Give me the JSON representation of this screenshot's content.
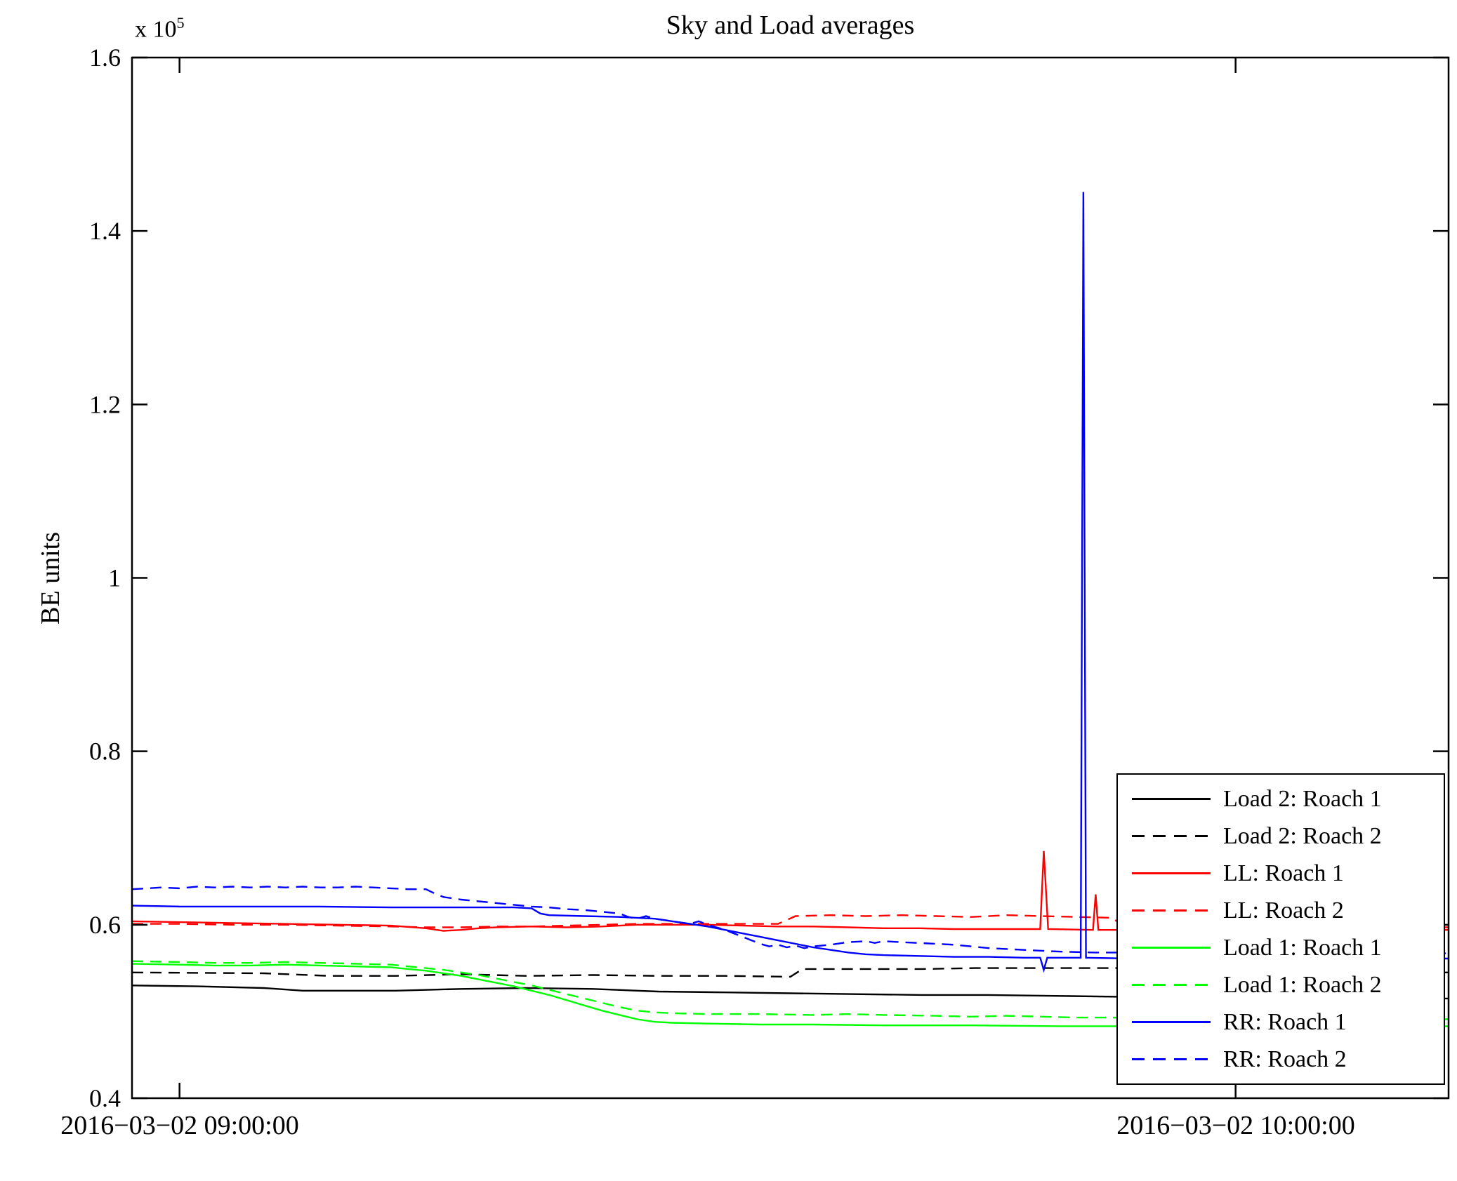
{
  "chart_data": {
    "type": "line",
    "title": "Sky and Load averages",
    "xlabel": "",
    "ylabel": "BE units",
    "y_offset_base": "x 10",
    "y_offset_exp": "5",
    "y_multiplier": 100000,
    "ylim": [
      0.4,
      1.6
    ],
    "y_ticks": [
      0.4,
      0.6,
      0.8,
      1,
      1.2,
      1.4,
      1.6
    ],
    "y_tick_labels": [
      "0.4",
      "0.6",
      "0.8",
      "1",
      "1.2",
      "1.4",
      "1.6"
    ],
    "x_unit": "minutes after 09:00:00",
    "xlim": [
      -2.7,
      72.1
    ],
    "x_ticks": [
      0,
      60
    ],
    "x_tick_labels": [
      "2016−03−02 09:00:00",
      "2016−03−02 10:00:00"
    ],
    "grid": false,
    "legend_position": "lower right",
    "colors": {
      "axis": "#000000",
      "background": "#ffffff"
    },
    "series": [
      {
        "name": "Load 2: Roach 1",
        "color": "#000000",
        "style": "solid",
        "points": [
          [
            -2.7,
            0.53
          ],
          [
            1,
            0.529
          ],
          [
            4.8,
            0.527
          ],
          [
            7,
            0.524
          ],
          [
            12.3,
            0.524
          ],
          [
            16,
            0.526
          ],
          [
            19.7,
            0.527
          ],
          [
            23.5,
            0.526
          ],
          [
            27.2,
            0.523
          ],
          [
            31,
            0.522
          ],
          [
            34.7,
            0.521
          ],
          [
            38.4,
            0.52
          ],
          [
            42.2,
            0.519
          ],
          [
            45.9,
            0.519
          ],
          [
            49.7,
            0.518
          ],
          [
            53.4,
            0.517
          ],
          [
            57.1,
            0.516
          ],
          [
            64.6,
            0.515
          ],
          [
            72.1,
            0.515
          ]
        ]
      },
      {
        "name": "Load 2: Roach 2",
        "color": "#000000",
        "style": "dashed",
        "points": [
          [
            -2.7,
            0.545
          ],
          [
            4.8,
            0.544
          ],
          [
            8.5,
            0.541
          ],
          [
            12.3,
            0.541
          ],
          [
            16,
            0.543
          ],
          [
            19.7,
            0.541
          ],
          [
            23.5,
            0.542
          ],
          [
            27.2,
            0.541
          ],
          [
            31,
            0.541
          ],
          [
            34.7,
            0.54
          ],
          [
            35.4,
            0.549
          ],
          [
            42.2,
            0.549
          ],
          [
            45.2,
            0.55
          ],
          [
            49.7,
            0.55
          ],
          [
            53.4,
            0.55
          ],
          [
            53.8,
            0.545
          ],
          [
            57.1,
            0.546
          ],
          [
            60.9,
            0.545
          ],
          [
            64.6,
            0.545
          ],
          [
            72.1,
            0.545
          ]
        ]
      },
      {
        "name": "LL: Roach 1",
        "color": "#ff0000",
        "style": "solid",
        "points": [
          [
            -2.7,
            0.604
          ],
          [
            0,
            0.603
          ],
          [
            3,
            0.602
          ],
          [
            6,
            0.601
          ],
          [
            9,
            0.6
          ],
          [
            12,
            0.599
          ],
          [
            14,
            0.596
          ],
          [
            15,
            0.593
          ],
          [
            16,
            0.594
          ],
          [
            17,
            0.596
          ],
          [
            18,
            0.597
          ],
          [
            20,
            0.598
          ],
          [
            22,
            0.597
          ],
          [
            24,
            0.598
          ],
          [
            26,
            0.6
          ],
          [
            28,
            0.6
          ],
          [
            30,
            0.6
          ],
          [
            32,
            0.599
          ],
          [
            34,
            0.598
          ],
          [
            36,
            0.598
          ],
          [
            38,
            0.597
          ],
          [
            40,
            0.596
          ],
          [
            42,
            0.596
          ],
          [
            44,
            0.595
          ],
          [
            46,
            0.595
          ],
          [
            48.9,
            0.595
          ],
          [
            49.1,
            0.685
          ],
          [
            49.35,
            0.595
          ],
          [
            51.9,
            0.594
          ],
          [
            52.05,
            0.635
          ],
          [
            52.2,
            0.594
          ],
          [
            54,
            0.594
          ],
          [
            58,
            0.594
          ],
          [
            62,
            0.594
          ],
          [
            66,
            0.594
          ],
          [
            72.1,
            0.594
          ]
        ]
      },
      {
        "name": "LL: Roach 2",
        "color": "#ff0000",
        "style": "dashed",
        "points": [
          [
            -2.7,
            0.601
          ],
          [
            0,
            0.601
          ],
          [
            3,
            0.6
          ],
          [
            6,
            0.6
          ],
          [
            9,
            0.599
          ],
          [
            12,
            0.598
          ],
          [
            14,
            0.597
          ],
          [
            16,
            0.597
          ],
          [
            18,
            0.598
          ],
          [
            20,
            0.598
          ],
          [
            22,
            0.599
          ],
          [
            24,
            0.6
          ],
          [
            26,
            0.601
          ],
          [
            28,
            0.601
          ],
          [
            30,
            0.601
          ],
          [
            32,
            0.601
          ],
          [
            34,
            0.601
          ],
          [
            35,
            0.61
          ],
          [
            37,
            0.611
          ],
          [
            39,
            0.61
          ],
          [
            41,
            0.611
          ],
          [
            43,
            0.61
          ],
          [
            45,
            0.609
          ],
          [
            47,
            0.611
          ],
          [
            49,
            0.61
          ],
          [
            51,
            0.609
          ],
          [
            53,
            0.608
          ],
          [
            53.5,
            0.6
          ],
          [
            55,
            0.599
          ],
          [
            57,
            0.599
          ],
          [
            59,
            0.598
          ],
          [
            61,
            0.6
          ],
          [
            63,
            0.597
          ],
          [
            66,
            0.597
          ],
          [
            72.1,
            0.597
          ]
        ]
      },
      {
        "name": "Load 1: Roach 1",
        "color": "#00ff00",
        "style": "solid",
        "points": [
          [
            -2.7,
            0.555
          ],
          [
            0,
            0.554
          ],
          [
            2,
            0.553
          ],
          [
            4,
            0.553
          ],
          [
            6,
            0.554
          ],
          [
            8,
            0.553
          ],
          [
            10,
            0.552
          ],
          [
            12,
            0.551
          ],
          [
            13,
            0.549
          ],
          [
            14,
            0.547
          ],
          [
            15,
            0.544
          ],
          [
            16,
            0.541
          ],
          [
            17,
            0.537
          ],
          [
            18,
            0.533
          ],
          [
            19,
            0.529
          ],
          [
            20,
            0.524
          ],
          [
            21,
            0.519
          ],
          [
            22,
            0.513
          ],
          [
            23,
            0.507
          ],
          [
            24,
            0.501
          ],
          [
            25,
            0.496
          ],
          [
            26,
            0.491
          ],
          [
            27,
            0.488
          ],
          [
            28,
            0.487
          ],
          [
            30,
            0.486
          ],
          [
            33,
            0.485
          ],
          [
            36,
            0.485
          ],
          [
            40,
            0.484
          ],
          [
            45,
            0.484
          ],
          [
            50,
            0.483
          ],
          [
            55,
            0.483
          ],
          [
            60,
            0.483
          ],
          [
            72.1,
            0.483
          ]
        ]
      },
      {
        "name": "Load 1: Roach 2",
        "color": "#00ff00",
        "style": "dashed",
        "points": [
          [
            -2.7,
            0.558
          ],
          [
            0,
            0.557
          ],
          [
            2,
            0.556
          ],
          [
            4,
            0.556
          ],
          [
            6,
            0.557
          ],
          [
            8,
            0.556
          ],
          [
            10,
            0.555
          ],
          [
            12,
            0.554
          ],
          [
            13,
            0.552
          ],
          [
            14,
            0.55
          ],
          [
            15,
            0.548
          ],
          [
            16,
            0.545
          ],
          [
            17,
            0.542
          ],
          [
            18,
            0.538
          ],
          [
            19,
            0.534
          ],
          [
            20,
            0.53
          ],
          [
            21,
            0.525
          ],
          [
            22,
            0.52
          ],
          [
            23,
            0.515
          ],
          [
            24,
            0.51
          ],
          [
            25,
            0.505
          ],
          [
            26,
            0.501
          ],
          [
            27,
            0.499
          ],
          [
            28,
            0.498
          ],
          [
            30,
            0.497
          ],
          [
            33,
            0.497
          ],
          [
            36,
            0.496
          ],
          [
            38,
            0.497
          ],
          [
            40,
            0.496
          ],
          [
            43,
            0.495
          ],
          [
            45,
            0.494
          ],
          [
            47,
            0.495
          ],
          [
            49,
            0.494
          ],
          [
            51,
            0.493
          ],
          [
            53,
            0.493
          ],
          [
            56,
            0.492
          ],
          [
            60,
            0.492
          ],
          [
            65,
            0.491
          ],
          [
            72.1,
            0.491
          ]
        ]
      },
      {
        "name": "RR: Roach 1",
        "color": "#0000ff",
        "style": "solid",
        "points": [
          [
            -2.7,
            0.622
          ],
          [
            0,
            0.621
          ],
          [
            4,
            0.621
          ],
          [
            8,
            0.621
          ],
          [
            12,
            0.62
          ],
          [
            16,
            0.62
          ],
          [
            19,
            0.62
          ],
          [
            20,
            0.619
          ],
          [
            20.5,
            0.613
          ],
          [
            21,
            0.611
          ],
          [
            23,
            0.61
          ],
          [
            25,
            0.609
          ],
          [
            27,
            0.607
          ],
          [
            28,
            0.604
          ],
          [
            29,
            0.601
          ],
          [
            30,
            0.598
          ],
          [
            31,
            0.594
          ],
          [
            32,
            0.59
          ],
          [
            33,
            0.586
          ],
          [
            34,
            0.582
          ],
          [
            35,
            0.578
          ],
          [
            36,
            0.574
          ],
          [
            37,
            0.571
          ],
          [
            38,
            0.568
          ],
          [
            39,
            0.566
          ],
          [
            40,
            0.565
          ],
          [
            42,
            0.564
          ],
          [
            44,
            0.563
          ],
          [
            46,
            0.563
          ],
          [
            48,
            0.562
          ],
          [
            48.9,
            0.562
          ],
          [
            49.1,
            0.548
          ],
          [
            49.3,
            0.562
          ],
          [
            51.2,
            0.562
          ],
          [
            51.35,
            1.445
          ],
          [
            51.5,
            0.562
          ],
          [
            54,
            0.561
          ],
          [
            58,
            0.561
          ],
          [
            62,
            0.561
          ],
          [
            66,
            0.561
          ],
          [
            72.1,
            0.561
          ]
        ]
      },
      {
        "name": "RR: Roach 2",
        "color": "#0000ff",
        "style": "dashed",
        "points": [
          [
            -2.7,
            0.641
          ],
          [
            -1,
            0.643
          ],
          [
            0,
            0.642
          ],
          [
            1,
            0.644
          ],
          [
            2,
            0.643
          ],
          [
            3,
            0.644
          ],
          [
            4,
            0.643
          ],
          [
            5,
            0.644
          ],
          [
            6,
            0.643
          ],
          [
            7,
            0.644
          ],
          [
            8,
            0.643
          ],
          [
            9,
            0.643
          ],
          [
            10,
            0.644
          ],
          [
            11,
            0.643
          ],
          [
            12,
            0.642
          ],
          [
            13,
            0.641
          ],
          [
            14,
            0.641
          ],
          [
            14.5,
            0.636
          ],
          [
            15,
            0.632
          ],
          [
            16,
            0.629
          ],
          [
            17,
            0.627
          ],
          [
            18,
            0.625
          ],
          [
            19,
            0.623
          ],
          [
            20,
            0.621
          ],
          [
            21,
            0.62
          ],
          [
            22,
            0.618
          ],
          [
            23,
            0.617
          ],
          [
            24,
            0.615
          ],
          [
            25,
            0.613
          ],
          [
            25.5,
            0.609
          ],
          [
            26,
            0.607
          ],
          [
            26.5,
            0.61
          ],
          [
            27,
            0.607
          ],
          [
            28,
            0.604
          ],
          [
            29,
            0.601
          ],
          [
            29.5,
            0.604
          ],
          [
            30,
            0.6
          ],
          [
            30.5,
            0.597
          ],
          [
            31,
            0.594
          ],
          [
            31.5,
            0.59
          ],
          [
            32,
            0.586
          ],
          [
            32.5,
            0.582
          ],
          [
            33,
            0.578
          ],
          [
            33.5,
            0.575
          ],
          [
            34,
            0.577
          ],
          [
            34.5,
            0.574
          ],
          [
            35,
            0.576
          ],
          [
            35.5,
            0.573
          ],
          [
            36,
            0.575
          ],
          [
            37,
            0.577
          ],
          [
            38,
            0.58
          ],
          [
            39,
            0.581
          ],
          [
            39.5,
            0.579
          ],
          [
            40,
            0.581
          ],
          [
            41,
            0.58
          ],
          [
            42,
            0.579
          ],
          [
            43,
            0.578
          ],
          [
            44,
            0.577
          ],
          [
            45,
            0.575
          ],
          [
            46,
            0.573
          ],
          [
            47,
            0.572
          ],
          [
            48,
            0.571
          ],
          [
            49,
            0.57
          ],
          [
            50,
            0.569
          ],
          [
            52,
            0.568
          ],
          [
            54,
            0.568
          ],
          [
            56,
            0.567
          ],
          [
            58,
            0.567
          ],
          [
            60,
            0.567
          ],
          [
            64,
            0.567
          ],
          [
            72.1,
            0.567
          ]
        ]
      }
    ]
  }
}
